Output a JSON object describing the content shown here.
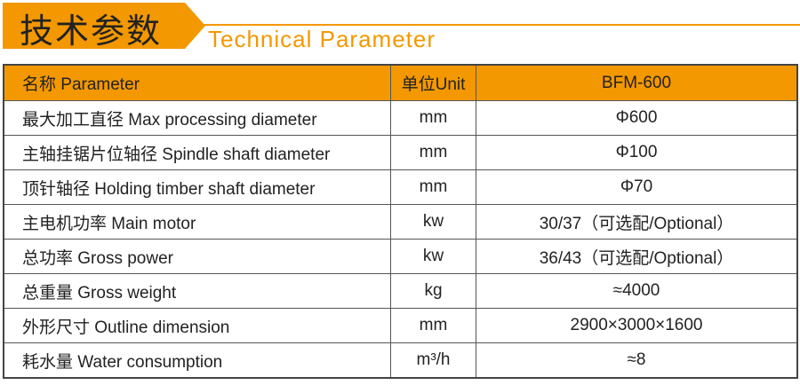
{
  "header": {
    "title_cn": "技术参数",
    "title_en": "Technical Parameter"
  },
  "table": {
    "columns": [
      "名称 Parameter",
      "单位Unit",
      "BFM-600"
    ],
    "rows": [
      [
        "最大加工直径 Max processing diameter",
        "mm",
        "Φ600"
      ],
      [
        "主轴挂锯片位轴径 Spindle shaft diameter",
        "mm",
        "Φ100"
      ],
      [
        "顶针轴径 Holding timber shaft diameter",
        "mm",
        "Φ70"
      ],
      [
        "主电机功率 Main motor",
        "kw",
        "30/37（可选配/Optional）"
      ],
      [
        "总功率 Gross power",
        "kw",
        "36/43（可选配/Optional）"
      ],
      [
        "总重量 Gross weight",
        "kg",
        "≈4000"
      ],
      [
        "外形尺寸 Outline dimension",
        "mm",
        "2900×3000×1600"
      ],
      [
        "耗水量 Water consumption",
        "m³/h",
        "≈8"
      ]
    ]
  },
  "colors": {
    "accent": "#f39800"
  }
}
